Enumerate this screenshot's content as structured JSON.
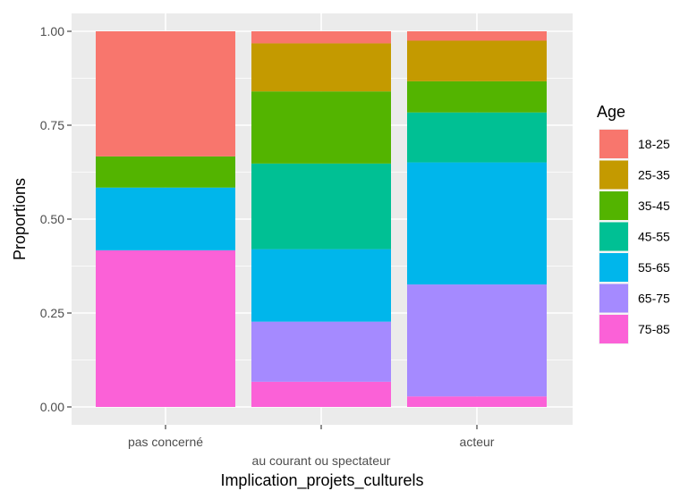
{
  "chart_data": {
    "type": "bar",
    "stacked": true,
    "xlabel": "Implication_projets_culturels",
    "ylabel": "Proportions",
    "ylim": [
      0,
      1
    ],
    "yticks": [
      "0.00",
      "0.25",
      "0.50",
      "0.75",
      "1.00"
    ],
    "ytick_values": [
      0,
      0.25,
      0.5,
      0.75,
      1.0
    ],
    "categories": [
      "pas concerné",
      "au courant ou spectateur",
      "acteur"
    ],
    "legend": {
      "title": "Age",
      "position": "right"
    },
    "grid": true,
    "panel_background": "#ebebeb",
    "series": [
      {
        "name": "18-25",
        "color": "#F8766D",
        "values": [
          0.333,
          0.032,
          0.025
        ]
      },
      {
        "name": "25-35",
        "color": "#C49A00",
        "values": [
          0.0,
          0.128,
          0.108
        ]
      },
      {
        "name": "35-45",
        "color": "#53B400",
        "values": [
          0.083,
          0.192,
          0.083
        ]
      },
      {
        "name": "45-55",
        "color": "#00C094",
        "values": [
          0.0,
          0.228,
          0.133
        ]
      },
      {
        "name": "55-65",
        "color": "#00B6EB",
        "values": [
          0.167,
          0.193,
          0.325
        ]
      },
      {
        "name": "65-75",
        "color": "#A58AFF",
        "values": [
          0.0,
          0.16,
          0.298
        ]
      },
      {
        "name": "75-85",
        "color": "#FB61D7",
        "values": [
          0.417,
          0.067,
          0.028
        ]
      }
    ]
  }
}
